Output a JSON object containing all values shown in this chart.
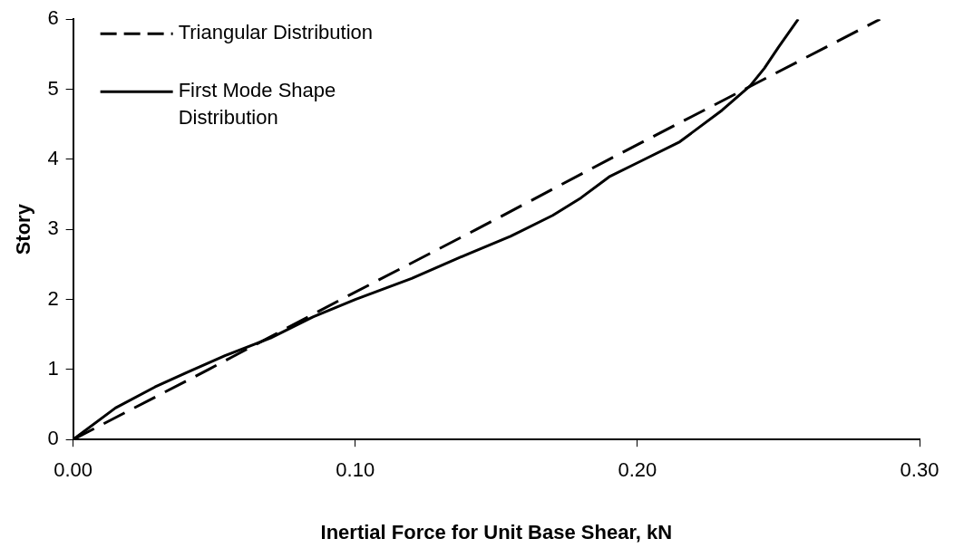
{
  "chart_data": {
    "type": "line",
    "xlabel": "Inertial Force for Unit Base Shear, kN",
    "ylabel": "Story",
    "xlim": [
      0,
      0.3
    ],
    "xticks": [
      {
        "value": 0,
        "label": "0.00"
      },
      {
        "value": 0.1,
        "label": "0.10"
      },
      {
        "value": 0.2,
        "label": "0.20"
      },
      {
        "value": 0.3,
        "label": "0.30"
      }
    ],
    "ylim": [
      0,
      6
    ],
    "yticks": [
      0,
      1,
      2,
      3,
      4,
      5,
      6
    ],
    "grid": false,
    "legend": "top left",
    "marker": "none",
    "series": [
      {
        "name": "Triangular Distribution",
        "color": "#000000",
        "line_style": "dashed",
        "x": [
          0,
          0.048,
          0.095,
          0.143,
          0.19,
          0.238,
          0.286
        ],
        "values": [
          0,
          1,
          2,
          3,
          4,
          5,
          6
        ]
      },
      {
        "name": "First Mode Shape Distribution",
        "color": "#000000",
        "line_style": "solid",
        "x": [
          0,
          0.015,
          0.029,
          0.04,
          0.054,
          0.07,
          0.085,
          0.1,
          0.12,
          0.14,
          0.155,
          0.17,
          0.18,
          0.19,
          0.2,
          0.215,
          0.23,
          0.24,
          0.245,
          0.25,
          0.257
        ],
        "values": [
          0,
          0.45,
          0.75,
          0.95,
          1.2,
          1.45,
          1.75,
          2,
          2.3,
          2.65,
          2.9,
          3.2,
          3.45,
          3.75,
          3.95,
          4.25,
          4.7,
          5.05,
          5.3,
          5.6,
          6
        ]
      }
    ]
  }
}
